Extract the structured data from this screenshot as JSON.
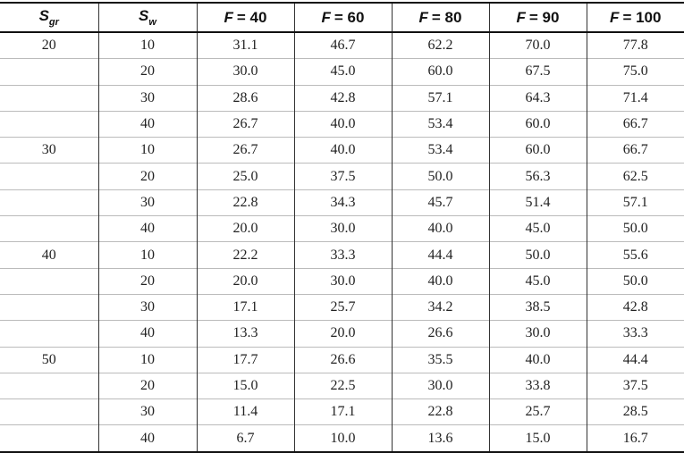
{
  "table": {
    "header": [
      {
        "symbol": "S",
        "subscript": "gr"
      },
      {
        "symbol": "S",
        "subscript": "w"
      },
      {
        "symbol": "F",
        "rest": "= 40"
      },
      {
        "symbol": "F",
        "rest": "= 60"
      },
      {
        "symbol": "F",
        "rest": "= 80"
      },
      {
        "symbol": "F",
        "rest": "= 90"
      },
      {
        "symbol": "F",
        "rest": "= 100"
      }
    ],
    "rows": [
      [
        "20",
        "10",
        "31.1",
        "46.7",
        "62.2",
        "70.0",
        "77.8"
      ],
      [
        null,
        "20",
        "30.0",
        "45.0",
        "60.0",
        "67.5",
        "75.0"
      ],
      [
        null,
        "30",
        "28.6",
        "42.8",
        "57.1",
        "64.3",
        "71.4"
      ],
      [
        null,
        "40",
        "26.7",
        "40.0",
        "53.4",
        "60.0",
        "66.7"
      ],
      [
        "30",
        "10",
        "26.7",
        "40.0",
        "53.4",
        "60.0",
        "66.7"
      ],
      [
        null,
        "20",
        "25.0",
        "37.5",
        "50.0",
        "56.3",
        "62.5"
      ],
      [
        null,
        "30",
        "22.8",
        "34.3",
        "45.7",
        "51.4",
        "57.1"
      ],
      [
        null,
        "40",
        "20.0",
        "30.0",
        "40.0",
        "45.0",
        "50.0"
      ],
      [
        "40",
        "10",
        "22.2",
        "33.3",
        "44.4",
        "50.0",
        "55.6"
      ],
      [
        null,
        "20",
        "20.0",
        "30.0",
        "40.0",
        "45.0",
        "50.0"
      ],
      [
        null,
        "30",
        "17.1",
        "25.7",
        "34.2",
        "38.5",
        "42.8"
      ],
      [
        null,
        "40",
        "13.3",
        "20.0",
        "26.6",
        "30.0",
        "33.3"
      ],
      [
        "50",
        "10",
        "17.7",
        "26.6",
        "35.5",
        "40.0",
        "44.4"
      ],
      [
        null,
        "20",
        "15.0",
        "22.5",
        "30.0",
        "33.8",
        "37.5"
      ],
      [
        null,
        "30",
        "11.4",
        "17.1",
        "22.8",
        "25.7",
        "28.5"
      ],
      [
        null,
        "40",
        "6.7",
        "10.0",
        "13.6",
        "15.0",
        "16.7"
      ]
    ]
  }
}
